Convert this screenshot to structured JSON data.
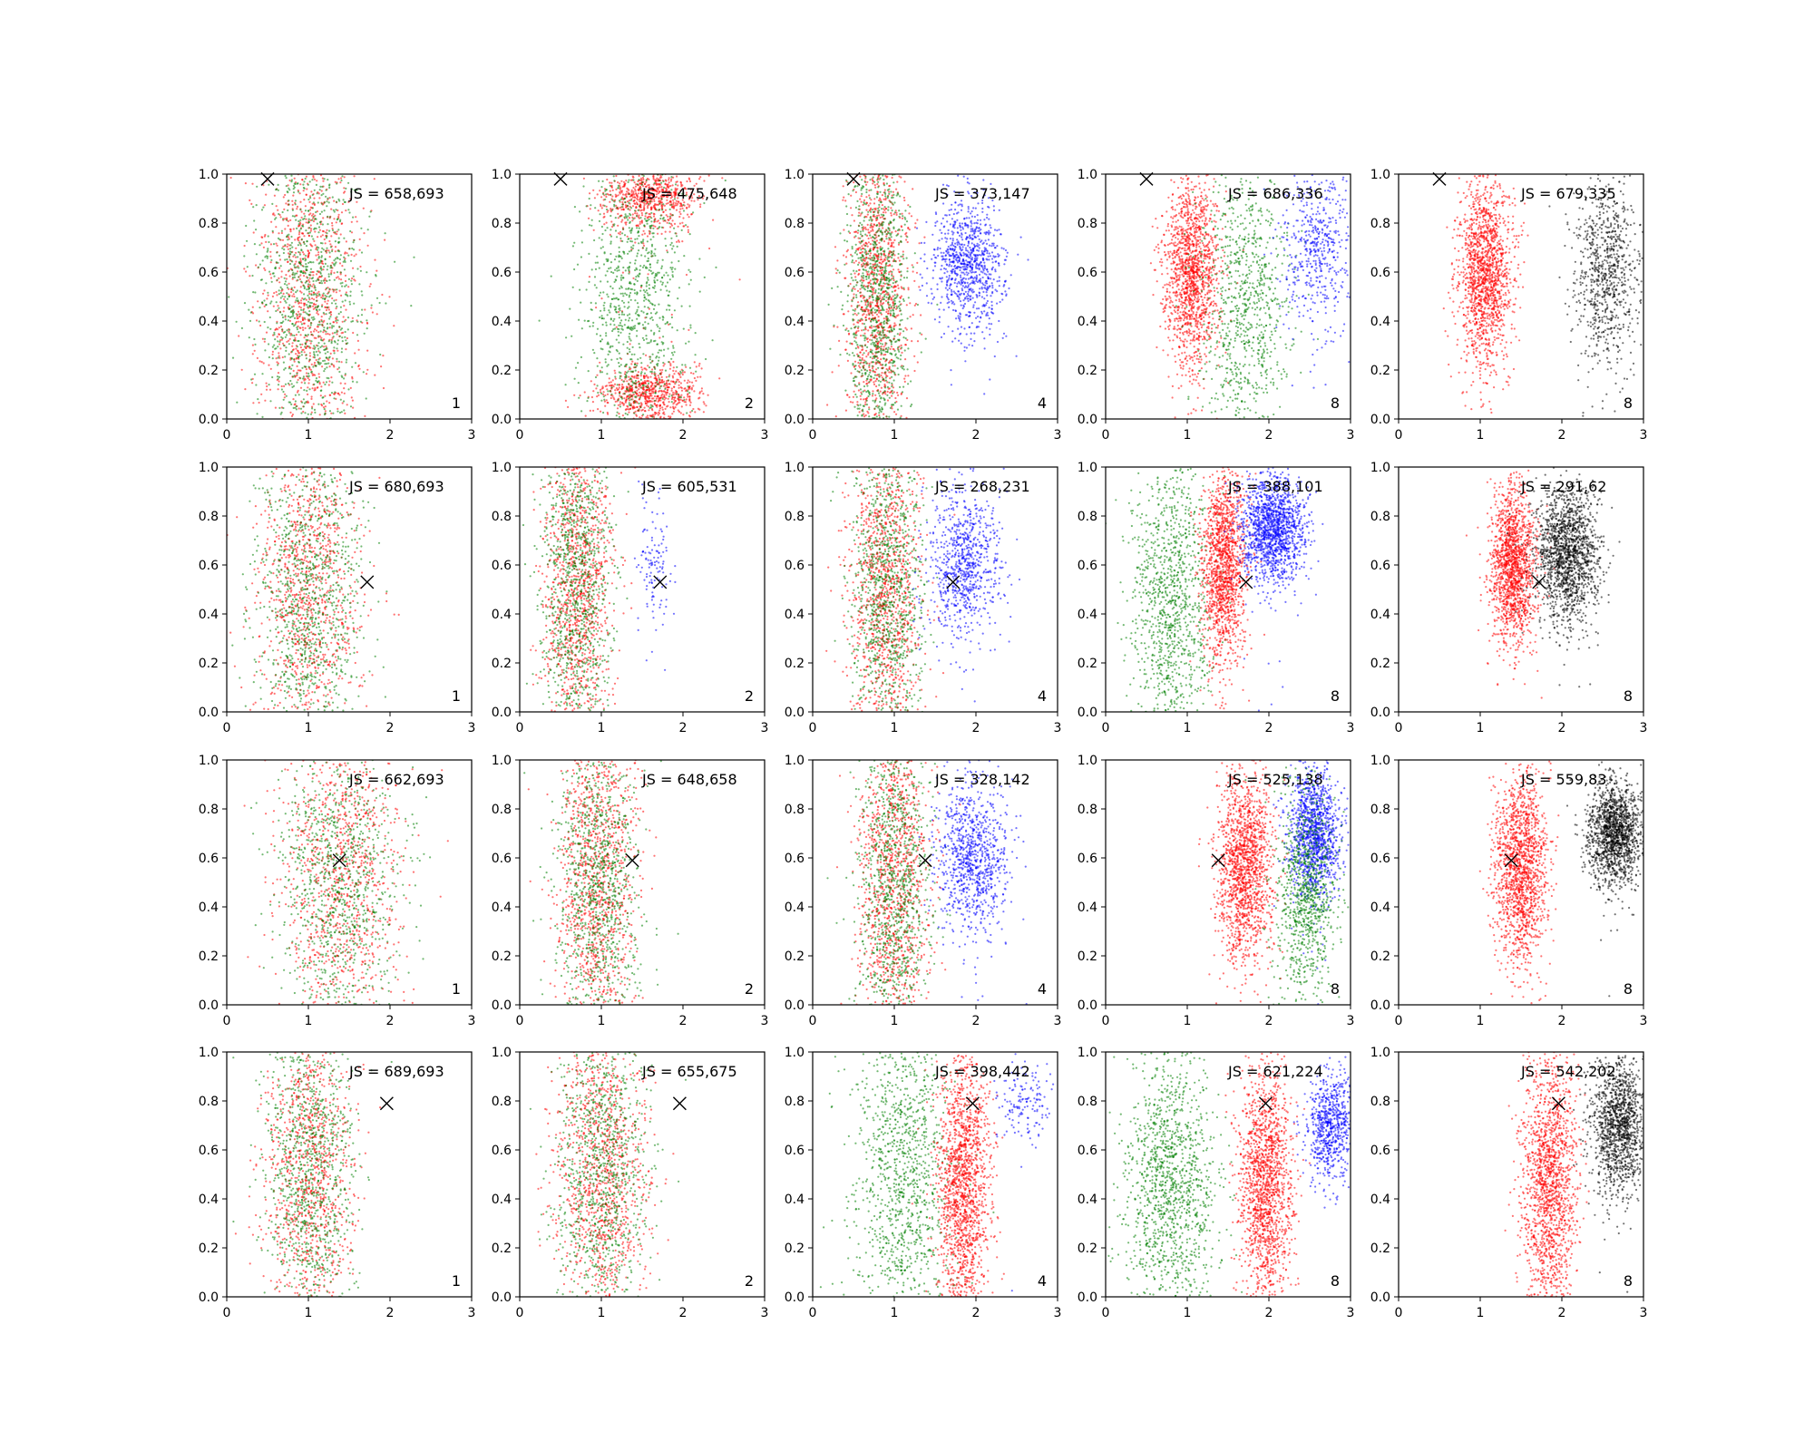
{
  "colors": {
    "red": "#ff0000",
    "green": "#008000",
    "blue": "#0000ff",
    "black": "#000000",
    "axes": "#000000",
    "background": "#ffffff"
  },
  "chart_data": {
    "type": "scatter",
    "layout": "4 rows x 5 columns of scatter panels",
    "shared_axes": {
      "xlim": [
        0,
        3
      ],
      "ylim": [
        0,
        1
      ],
      "xticks": [
        "0",
        "1",
        "2",
        "3"
      ],
      "yticks": [
        "0.0",
        "0.2",
        "0.4",
        "0.6",
        "0.8",
        "1.0"
      ],
      "grid": false
    },
    "marker": {
      "symbol": "x",
      "color": "#000000"
    },
    "rows": [
      {
        "marker_x": 0.5,
        "marker_y": 0.98,
        "panels": [
          {
            "js": "JS = 658,693",
            "count": "1",
            "clusters": [
              {
                "color": "red",
                "cx": 1.0,
                "sx": 0.6,
                "cy": 0.5,
                "sy": 0.6,
                "n": 900
              },
              {
                "color": "green",
                "cx": 1.0,
                "sx": 0.6,
                "cy": 0.5,
                "sy": 0.6,
                "n": 900
              }
            ]
          },
          {
            "js": "JS = 475,648",
            "count": "2",
            "clusters": [
              {
                "color": "red",
                "cx": 1.6,
                "sx": 0.55,
                "cy": 0.9,
                "sy": 0.12,
                "n": 700
              },
              {
                "color": "red",
                "cx": 1.6,
                "sx": 0.55,
                "cy": 0.1,
                "sy": 0.1,
                "n": 700
              },
              {
                "color": "green",
                "cx": 1.4,
                "sx": 0.6,
                "cy": 0.5,
                "sy": 0.6,
                "n": 900
              }
            ]
          },
          {
            "js": "JS = 373,147",
            "count": "4",
            "clusters": [
              {
                "color": "red",
                "cx": 0.8,
                "sx": 0.35,
                "cy": 0.5,
                "sy": 0.6,
                "n": 1000
              },
              {
                "color": "green",
                "cx": 0.8,
                "sx": 0.35,
                "cy": 0.5,
                "sy": 0.6,
                "n": 900
              },
              {
                "color": "blue",
                "cx": 1.9,
                "sx": 0.4,
                "cy": 0.65,
                "sy": 0.25,
                "n": 900
              }
            ]
          },
          {
            "js": "JS = 686,336",
            "count": "8",
            "clusters": [
              {
                "color": "red",
                "cx": 1.05,
                "sx": 0.3,
                "cy": 0.6,
                "sy": 0.35,
                "n": 1400
              },
              {
                "color": "green",
                "cx": 1.7,
                "sx": 0.5,
                "cy": 0.45,
                "sy": 0.5,
                "n": 800
              },
              {
                "color": "blue",
                "cx": 2.6,
                "sx": 0.4,
                "cy": 0.7,
                "sy": 0.3,
                "n": 500
              }
            ]
          },
          {
            "js": "JS = 679,335",
            "count": "8",
            "clusters": [
              {
                "color": "red",
                "cx": 1.05,
                "sx": 0.3,
                "cy": 0.6,
                "sy": 0.35,
                "n": 1500
              },
              {
                "color": "black",
                "cx": 2.55,
                "sx": 0.35,
                "cy": 0.6,
                "sy": 0.35,
                "n": 800
              }
            ]
          }
        ]
      },
      {
        "marker_x": 1.72,
        "marker_y": 0.53,
        "panels": [
          {
            "js": "JS = 680,693",
            "count": "1",
            "clusters": [
              {
                "color": "red",
                "cx": 1.0,
                "sx": 0.6,
                "cy": 0.5,
                "sy": 0.6,
                "n": 900
              },
              {
                "color": "green",
                "cx": 1.0,
                "sx": 0.6,
                "cy": 0.5,
                "sy": 0.6,
                "n": 900
              }
            ]
          },
          {
            "js": "JS = 605,531",
            "count": "2",
            "clusters": [
              {
                "color": "red",
                "cx": 0.7,
                "sx": 0.4,
                "cy": 0.5,
                "sy": 0.6,
                "n": 1000
              },
              {
                "color": "green",
                "cx": 0.7,
                "sx": 0.4,
                "cy": 0.5,
                "sy": 0.6,
                "n": 900
              },
              {
                "color": "blue",
                "cx": 1.65,
                "sx": 0.2,
                "cy": 0.6,
                "sy": 0.25,
                "n": 120
              }
            ]
          },
          {
            "js": "JS = 268,231",
            "count": "4",
            "clusters": [
              {
                "color": "red",
                "cx": 0.9,
                "sx": 0.4,
                "cy": 0.5,
                "sy": 0.6,
                "n": 1000
              },
              {
                "color": "green",
                "cx": 0.9,
                "sx": 0.4,
                "cy": 0.5,
                "sy": 0.6,
                "n": 900
              },
              {
                "color": "blue",
                "cx": 1.85,
                "sx": 0.4,
                "cy": 0.6,
                "sy": 0.3,
                "n": 800
              }
            ]
          },
          {
            "js": "JS = 388,101",
            "count": "8",
            "clusters": [
              {
                "color": "green",
                "cx": 0.8,
                "sx": 0.45,
                "cy": 0.45,
                "sy": 0.5,
                "n": 1000
              },
              {
                "color": "red",
                "cx": 1.45,
                "sx": 0.25,
                "cy": 0.6,
                "sy": 0.35,
                "n": 1400
              },
              {
                "color": "blue",
                "cx": 2.05,
                "sx": 0.35,
                "cy": 0.75,
                "sy": 0.2,
                "n": 1400
              }
            ]
          },
          {
            "js": "JS = 291,62",
            "count": "8",
            "clusters": [
              {
                "color": "red",
                "cx": 1.4,
                "sx": 0.25,
                "cy": 0.6,
                "sy": 0.3,
                "n": 1500
              },
              {
                "color": "black",
                "cx": 2.05,
                "sx": 0.35,
                "cy": 0.65,
                "sy": 0.25,
                "n": 1600
              }
            ]
          }
        ]
      },
      {
        "marker_x": 1.38,
        "marker_y": 0.59,
        "panels": [
          {
            "js": "JS = 662,693",
            "count": "1",
            "clusters": [
              {
                "color": "red",
                "cx": 1.4,
                "sx": 0.7,
                "cy": 0.5,
                "sy": 0.6,
                "n": 900
              },
              {
                "color": "green",
                "cx": 1.4,
                "sx": 0.7,
                "cy": 0.5,
                "sy": 0.6,
                "n": 900
              }
            ]
          },
          {
            "js": "JS = 648,658",
            "count": "2",
            "clusters": [
              {
                "color": "red",
                "cx": 0.95,
                "sx": 0.45,
                "cy": 0.5,
                "sy": 0.6,
                "n": 1000
              },
              {
                "color": "green",
                "cx": 0.95,
                "sx": 0.45,
                "cy": 0.5,
                "sy": 0.6,
                "n": 900
              }
            ]
          },
          {
            "js": "JS = 328,142",
            "count": "4",
            "clusters": [
              {
                "color": "red",
                "cx": 1.0,
                "sx": 0.4,
                "cy": 0.5,
                "sy": 0.6,
                "n": 1000
              },
              {
                "color": "green",
                "cx": 1.0,
                "sx": 0.4,
                "cy": 0.5,
                "sy": 0.6,
                "n": 900
              },
              {
                "color": "blue",
                "cx": 1.95,
                "sx": 0.4,
                "cy": 0.6,
                "sy": 0.3,
                "n": 900
              }
            ]
          },
          {
            "js": "JS = 525,138",
            "count": "8",
            "clusters": [
              {
                "color": "red",
                "cx": 1.7,
                "sx": 0.3,
                "cy": 0.55,
                "sy": 0.35,
                "n": 1500
              },
              {
                "color": "blue",
                "cx": 2.55,
                "sx": 0.3,
                "cy": 0.7,
                "sy": 0.25,
                "n": 1200
              },
              {
                "color": "green",
                "cx": 2.45,
                "sx": 0.35,
                "cy": 0.45,
                "sy": 0.4,
                "n": 900
              }
            ]
          },
          {
            "js": "JS = 559,83",
            "count": "8",
            "clusters": [
              {
                "color": "red",
                "cx": 1.5,
                "sx": 0.3,
                "cy": 0.55,
                "sy": 0.35,
                "n": 1500
              },
              {
                "color": "black",
                "cx": 2.65,
                "sx": 0.3,
                "cy": 0.7,
                "sy": 0.2,
                "n": 1500
              }
            ]
          }
        ]
      },
      {
        "marker_x": 1.96,
        "marker_y": 0.79,
        "panels": [
          {
            "js": "JS = 689,693",
            "count": "1",
            "clusters": [
              {
                "color": "red",
                "cx": 1.0,
                "sx": 0.5,
                "cy": 0.5,
                "sy": 0.6,
                "n": 900
              },
              {
                "color": "green",
                "cx": 1.0,
                "sx": 0.5,
                "cy": 0.5,
                "sy": 0.6,
                "n": 900
              }
            ]
          },
          {
            "js": "JS = 655,675",
            "count": "2",
            "clusters": [
              {
                "color": "red",
                "cx": 1.0,
                "sx": 0.5,
                "cy": 0.5,
                "sy": 0.6,
                "n": 1000
              },
              {
                "color": "green",
                "cx": 1.0,
                "sx": 0.5,
                "cy": 0.5,
                "sy": 0.6,
                "n": 900
              }
            ]
          },
          {
            "js": "JS = 398,442",
            "count": "4",
            "clusters": [
              {
                "color": "green",
                "cx": 1.1,
                "sx": 0.55,
                "cy": 0.5,
                "sy": 0.6,
                "n": 1000
              },
              {
                "color": "red",
                "cx": 1.85,
                "sx": 0.3,
                "cy": 0.45,
                "sy": 0.5,
                "n": 1500
              },
              {
                "color": "blue",
                "cx": 2.6,
                "sx": 0.3,
                "cy": 0.8,
                "sy": 0.15,
                "n": 150
              }
            ]
          },
          {
            "js": "JS = 621,224",
            "count": "8",
            "clusters": [
              {
                "color": "green",
                "cx": 0.8,
                "sx": 0.5,
                "cy": 0.45,
                "sy": 0.5,
                "n": 1200
              },
              {
                "color": "red",
                "cx": 1.95,
                "sx": 0.3,
                "cy": 0.45,
                "sy": 0.45,
                "n": 1500
              },
              {
                "color": "blue",
                "cx": 2.75,
                "sx": 0.25,
                "cy": 0.7,
                "sy": 0.2,
                "n": 700
              }
            ]
          },
          {
            "js": "JS = 542,202",
            "count": "8",
            "clusters": [
              {
                "color": "red",
                "cx": 1.85,
                "sx": 0.3,
                "cy": 0.45,
                "sy": 0.5,
                "n": 1500
              },
              {
                "color": "black",
                "cx": 2.7,
                "sx": 0.3,
                "cy": 0.7,
                "sy": 0.25,
                "n": 1300
              }
            ]
          }
        ]
      }
    ]
  }
}
